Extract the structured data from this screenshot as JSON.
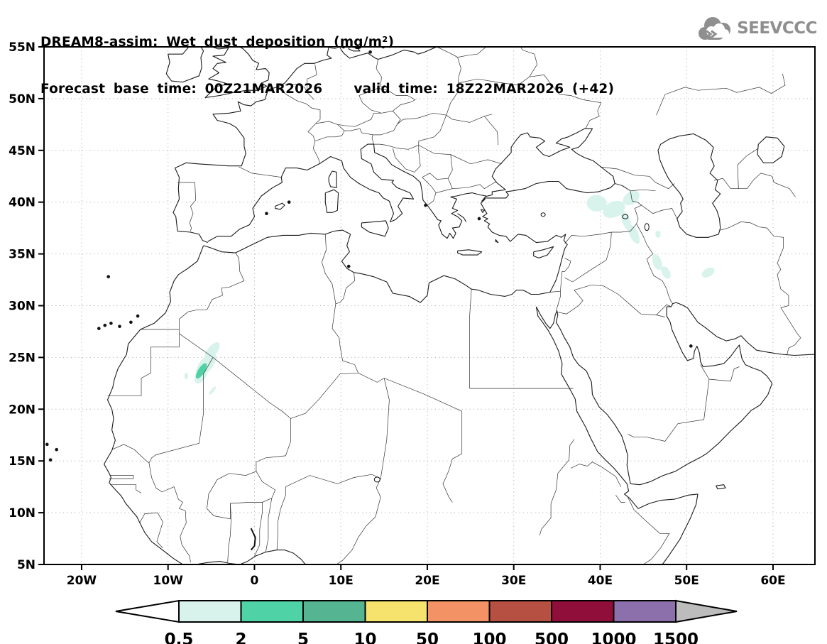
{
  "header": {
    "title": "DREAM8-assim: Wet dust deposition (mg/m²)",
    "forecast": {
      "base_label": "Forecast base time:",
      "base_value": "00Z21MAR2026",
      "valid_label": "valid time:",
      "valid_value": "18Z22MAR2026 (+42)"
    }
  },
  "logo": {
    "text": "SEEVCCC",
    "color": "#8f8f8f"
  },
  "map": {
    "x_ticks": [
      {
        "label": "20W",
        "lon": -20
      },
      {
        "label": "10W",
        "lon": -10
      },
      {
        "label": "0",
        "lon": 0
      },
      {
        "label": "10E",
        "lon": 10
      },
      {
        "label": "20E",
        "lon": 20
      },
      {
        "label": "30E",
        "lon": 30
      },
      {
        "label": "40E",
        "lon": 40
      },
      {
        "label": "50E",
        "lon": 50
      },
      {
        "label": "60E",
        "lon": 60
      }
    ],
    "y_ticks": [
      {
        "label": "55N",
        "lat": 55
      },
      {
        "label": "50N",
        "lat": 50
      },
      {
        "label": "45N",
        "lat": 45
      },
      {
        "label": "40N",
        "lat": 40
      },
      {
        "label": "35N",
        "lat": 35
      },
      {
        "label": "30N",
        "lat": 30
      },
      {
        "label": "25N",
        "lat": 25
      },
      {
        "label": "20N",
        "lat": 20
      },
      {
        "label": "15N",
        "lat": 15
      },
      {
        "label": "10N",
        "lat": 10
      },
      {
        "label": "5N",
        "lat": 5
      }
    ],
    "frame_color": "#000000",
    "grid_color": "#b2b2b2",
    "coast_color": "#1a1a1a",
    "border_color": "#333333"
  },
  "colorbar": {
    "labels": [
      "0.5",
      "2",
      "5",
      "10",
      "50",
      "100",
      "500",
      "1000",
      "1500"
    ],
    "segment_colors": [
      "#d8f3ec",
      "#4fd3a6",
      "#55b593",
      "#f6e36e",
      "#f29265",
      "#b65042",
      "#8f0f3a",
      "#8c70ab"
    ],
    "left_arrow_color": "#ffffff",
    "right_arrow_color": "#bcbcbc",
    "outline_color": "#000000"
  },
  "chart_data": {
    "type": "heatmap",
    "title": "DREAM8-assim: Wet dust deposition (mg/m²)",
    "model": "DREAM8-assim",
    "variable": "Wet dust deposition",
    "units": "mg/m²",
    "forecast_base_time": "00Z21MAR2026",
    "valid_time": "18Z22MAR2026 (+42)",
    "lead_hours": 42,
    "projection": "lat-lon",
    "lon_range": [
      -24.35,
      64.85
    ],
    "lat_range": [
      5,
      55
    ],
    "x_tick_lons": [
      -20,
      -10,
      0,
      10,
      20,
      30,
      40,
      50,
      60
    ],
    "y_tick_lats": [
      55,
      50,
      45,
      40,
      35,
      30,
      25,
      20,
      15,
      10,
      5
    ],
    "grid": "dotted",
    "legend_position": "bottom",
    "contour_levels": [
      0.5,
      2,
      5,
      10,
      50,
      100,
      500,
      1000,
      1500
    ],
    "palette": [
      "#d8f3ec",
      "#4fd3a6",
      "#55b593",
      "#f6e36e",
      "#f29265",
      "#b65042",
      "#8f0f3a",
      "#8c70ab"
    ],
    "underflow_color": "#ffffff",
    "overflow_color": "#bcbcbc",
    "regions": [
      {
        "name": "mali-blob-north",
        "lon": -4.9,
        "lat": 25.6,
        "rx_deg": 0.55,
        "ry_deg": 1.05,
        "rot_deg": 38,
        "level": "0.5-2"
      },
      {
        "name": "mali-blob-main",
        "lon": -5.6,
        "lat": 24.3,
        "rx_deg": 0.75,
        "ry_deg": 1.35,
        "rot_deg": 38,
        "level": "0.5-2"
      },
      {
        "name": "mali-blob-south",
        "lon": -6.2,
        "lat": 23.3,
        "rx_deg": 0.6,
        "ry_deg": 0.9,
        "rot_deg": 30,
        "level": "0.5-2"
      },
      {
        "name": "mali-core",
        "lon": -6.15,
        "lat": 23.7,
        "rx_deg": 0.38,
        "ry_deg": 0.85,
        "rot_deg": 32,
        "level": "2-5"
      },
      {
        "name": "mauritania-dot",
        "lon": -7.9,
        "lat": 23.2,
        "rx_deg": 0.22,
        "ry_deg": 0.32,
        "rot_deg": 0,
        "level": "0.5-2"
      },
      {
        "name": "mali-streak-south",
        "lon": -4.85,
        "lat": 21.8,
        "rx_deg": 0.18,
        "ry_deg": 0.5,
        "rot_deg": 40,
        "level": "0.5-2"
      },
      {
        "name": "east-anatolia-west",
        "lon": 39.6,
        "lat": 39.9,
        "rx_deg": 1.15,
        "ry_deg": 0.8,
        "rot_deg": 0,
        "level": "0.5-2"
      },
      {
        "name": "east-anatolia-east",
        "lon": 41.6,
        "lat": 39.3,
        "rx_deg": 1.35,
        "ry_deg": 0.75,
        "rot_deg": -25,
        "level": "0.5-2"
      },
      {
        "name": "armenia-arm",
        "lon": 43.6,
        "lat": 40.4,
        "rx_deg": 1.05,
        "ry_deg": 0.6,
        "rot_deg": -35,
        "level": "0.5-2"
      },
      {
        "name": "van-streak",
        "lon": 43.0,
        "lat": 38.2,
        "rx_deg": 0.45,
        "ry_deg": 1.0,
        "rot_deg": -20,
        "level": "0.5-2"
      },
      {
        "name": "turkey-iraq-border",
        "lon": 43.9,
        "lat": 36.9,
        "rx_deg": 0.5,
        "ry_deg": 1.0,
        "rot_deg": -25,
        "level": "0.5-2"
      },
      {
        "name": "nw-iran-dot",
        "lon": 46.7,
        "lat": 36.9,
        "rx_deg": 0.3,
        "ry_deg": 0.35,
        "rot_deg": 0,
        "level": "0.5-2"
      },
      {
        "name": "w-iran-blob-1",
        "lon": 46.6,
        "lat": 34.2,
        "rx_deg": 0.5,
        "ry_deg": 0.8,
        "rot_deg": -20,
        "level": "0.5-2"
      },
      {
        "name": "w-iran-blob-2",
        "lon": 47.6,
        "lat": 33.2,
        "rx_deg": 0.45,
        "ry_deg": 0.65,
        "rot_deg": -30,
        "level": "0.5-2"
      },
      {
        "name": "c-iran-smudge",
        "lon": 52.5,
        "lat": 33.2,
        "rx_deg": 0.8,
        "ry_deg": 0.4,
        "rot_deg": -30,
        "level": "0.5-2"
      }
    ]
  }
}
